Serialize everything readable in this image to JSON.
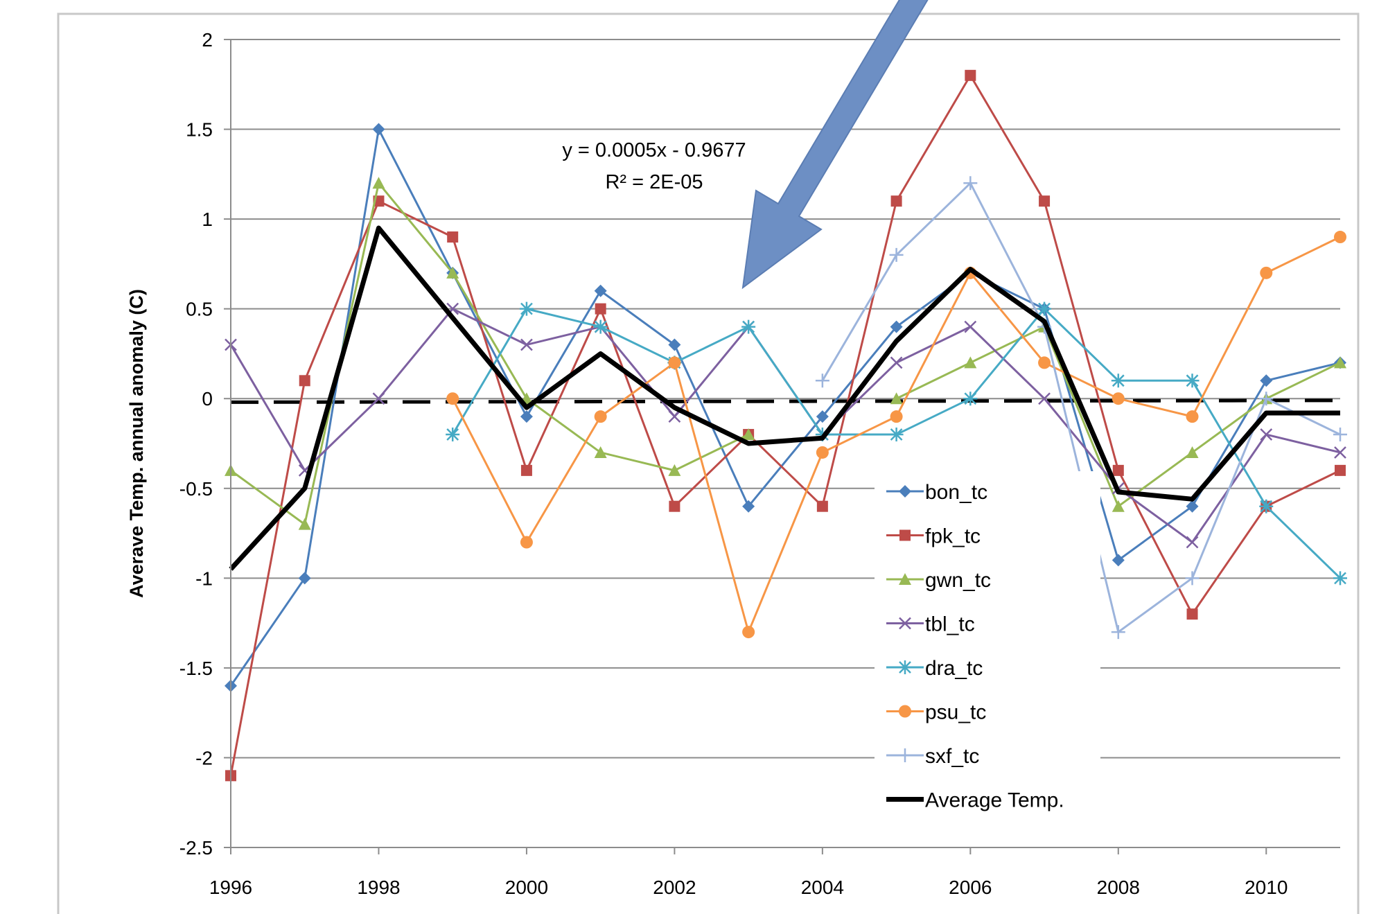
{
  "chart_data": {
    "type": "line",
    "y_axis_label": "Averave Temp. annual anomaly (C)",
    "annotation": [
      "y = 0.0005x - 0.9677",
      "R² = 2E-05"
    ],
    "x": [
      1996,
      1997,
      1998,
      1999,
      2000,
      2001,
      2002,
      2003,
      2004,
      2005,
      2006,
      2007,
      2008,
      2009,
      2010,
      2011
    ],
    "xlim": [
      1996,
      2011
    ],
    "xticks": [
      1996,
      1998,
      2000,
      2002,
      2004,
      2006,
      2008,
      2010
    ],
    "ylim": [
      -2.5,
      2
    ],
    "yticks": [
      -2.5,
      -2,
      -1.5,
      -1,
      -0.5,
      0,
      0.5,
      1,
      1.5,
      2
    ],
    "grid": true,
    "series": [
      {
        "name": "bon_tc",
        "color": "#4a7ebb",
        "marker": "diamond",
        "values": [
          -1.6,
          -1.0,
          1.5,
          0.7,
          -0.1,
          0.6,
          0.3,
          -0.6,
          -0.1,
          0.4,
          0.7,
          0.5,
          -0.9,
          -0.6,
          0.1,
          0.2
        ]
      },
      {
        "name": "fpk_tc",
        "color": "#be4b48",
        "marker": "square",
        "values": [
          -2.1,
          0.1,
          1.1,
          0.9,
          -0.4,
          0.5,
          -0.6,
          -0.2,
          -0.6,
          1.1,
          1.8,
          1.1,
          -0.4,
          -1.2,
          -0.6,
          -0.4
        ]
      },
      {
        "name": "gwn_tc",
        "color": "#98b954",
        "marker": "triangle",
        "values": [
          -0.4,
          -0.7,
          1.2,
          0.7,
          0.0,
          -0.3,
          -0.4,
          -0.2,
          null,
          0.0,
          0.2,
          0.4,
          -0.6,
          -0.3,
          0.0,
          0.2
        ]
      },
      {
        "name": "tbl_tc",
        "color": "#7d60a0",
        "marker": "x",
        "values": [
          0.3,
          -0.4,
          0.0,
          0.5,
          0.3,
          0.4,
          -0.1,
          0.4,
          -0.2,
          0.2,
          0.4,
          0.0,
          -0.5,
          -0.8,
          -0.2,
          -0.3
        ]
      },
      {
        "name": "dra_tc",
        "color": "#46aac5",
        "marker": "asterisk",
        "values": [
          null,
          null,
          null,
          -0.2,
          0.5,
          0.4,
          0.2,
          0.4,
          -0.2,
          -0.2,
          0.0,
          0.5,
          0.1,
          0.1,
          -0.6,
          -1.0
        ]
      },
      {
        "name": "psu_tc",
        "color": "#f79646",
        "marker": "circle",
        "values": [
          null,
          null,
          null,
          0.0,
          -0.8,
          -0.1,
          0.2,
          -1.3,
          -0.3,
          -0.1,
          0.7,
          0.2,
          0.0,
          -0.1,
          0.7,
          0.9
        ]
      },
      {
        "name": "sxf_tc",
        "color": "#9cb4dc",
        "marker": "plus",
        "values": [
          null,
          null,
          null,
          null,
          null,
          null,
          null,
          null,
          0.1,
          0.8,
          1.2,
          0.4,
          -1.3,
          -1.0,
          0.0,
          -0.2
        ]
      },
      {
        "name": "Average Temp.",
        "color": "#000000",
        "marker": "none",
        "values": [
          -0.95,
          -0.5,
          0.95,
          0.45,
          -0.05,
          0.25,
          -0.05,
          -0.25,
          -0.22,
          0.32,
          0.72,
          0.43,
          -0.52,
          -0.56,
          -0.08,
          -0.08
        ]
      }
    ],
    "trendline": {
      "x": [
        1996,
        2011
      ],
      "values": [
        -0.02,
        -0.01
      ],
      "color": "#000000"
    }
  }
}
